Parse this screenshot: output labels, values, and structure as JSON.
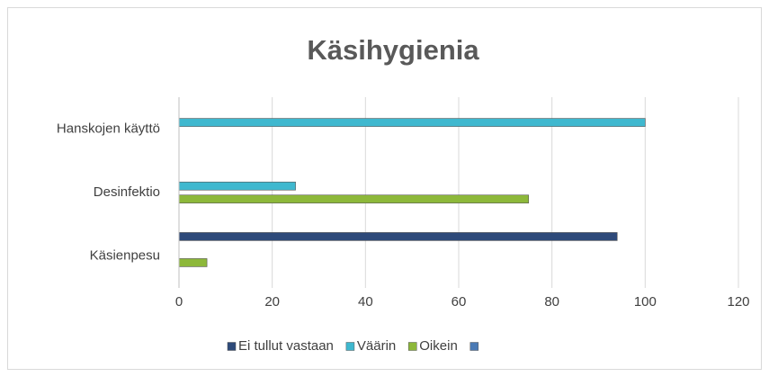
{
  "chart_data": {
    "type": "bar",
    "orientation": "horizontal",
    "title": "Käsihygienia",
    "categories": [
      "Käsienpesu",
      "Desinfektio",
      "Hanskojen käyttö"
    ],
    "series": [
      {
        "name": "Ei tullut vastaan",
        "color": "#2e4a7a",
        "values": [
          94,
          0,
          0
        ]
      },
      {
        "name": "Väärin",
        "color": "#3fb8cf",
        "values": [
          0,
          25,
          100
        ]
      },
      {
        "name": "Oikein",
        "color": "#8db83a",
        "values": [
          6,
          75,
          0
        ]
      },
      {
        "name": null,
        "color": "#4a7ab5",
        "values": [
          null,
          null,
          null
        ]
      }
    ],
    "xlim": [
      0,
      120
    ],
    "xticks": [
      0,
      20,
      40,
      60,
      80,
      100,
      120
    ],
    "grid": true,
    "legend": "bottom"
  }
}
